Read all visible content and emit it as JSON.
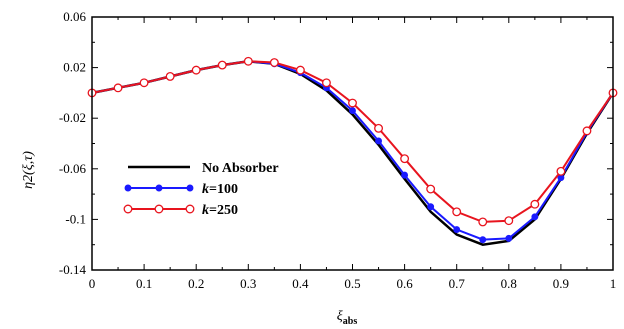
{
  "chart_data": {
    "type": "line",
    "title": "",
    "xlabel": "ξ",
    "xlabel_sub": "abs",
    "ylabel": "η2(ξ,τ)",
    "xlim": [
      0,
      1
    ],
    "ylim": [
      -0.14,
      0.06
    ],
    "x_ticks": [
      0,
      0.1,
      0.2,
      0.3,
      0.4,
      0.5,
      0.6,
      0.7,
      0.8,
      0.9,
      1
    ],
    "x_tick_labels": [
      "0",
      "0.1",
      "0.2",
      "0.3",
      "0.4",
      "0.5",
      "0.6",
      "0.7",
      "0.8",
      "0.9",
      "1"
    ],
    "y_ticks": [
      0.06,
      0.02,
      -0.02,
      -0.06,
      -0.1,
      -0.14
    ],
    "y_tick_labels": [
      "0.06",
      "0.02",
      "-0.02",
      "-0.06",
      "-0.1",
      "-0.14"
    ],
    "grid": false,
    "legend_position": "left",
    "x": [
      0.0,
      0.05,
      0.1,
      0.15,
      0.2,
      0.25,
      0.3,
      0.35,
      0.4,
      0.45,
      0.5,
      0.55,
      0.6,
      0.65,
      0.7,
      0.75,
      0.8,
      0.85,
      0.9,
      0.95,
      1.0
    ],
    "series": [
      {
        "name": "No Absorber",
        "color": "#000000",
        "marker": "none",
        "values": [
          0.0,
          0.004,
          0.008,
          0.013,
          0.018,
          0.022,
          0.025,
          0.023,
          0.015,
          0.002,
          -0.017,
          -0.041,
          -0.068,
          -0.094,
          -0.112,
          -0.12,
          -0.117,
          -0.1,
          -0.068,
          -0.032,
          0.0
        ]
      },
      {
        "name": "k=100",
        "color": "#1a1aff",
        "marker": "filled-circle",
        "values": [
          0.0,
          0.004,
          0.008,
          0.013,
          0.018,
          0.022,
          0.025,
          0.023,
          0.016,
          0.004,
          -0.014,
          -0.038,
          -0.065,
          -0.09,
          -0.108,
          -0.116,
          -0.115,
          -0.098,
          -0.067,
          -0.031,
          0.0
        ]
      },
      {
        "name": "k=250",
        "color": "#e8141e",
        "marker": "open-circle",
        "values": [
          0.0,
          0.004,
          0.008,
          0.013,
          0.018,
          0.022,
          0.025,
          0.024,
          0.018,
          0.008,
          -0.008,
          -0.028,
          -0.052,
          -0.076,
          -0.094,
          -0.102,
          -0.101,
          -0.088,
          -0.062,
          -0.03,
          0.0
        ]
      }
    ]
  }
}
